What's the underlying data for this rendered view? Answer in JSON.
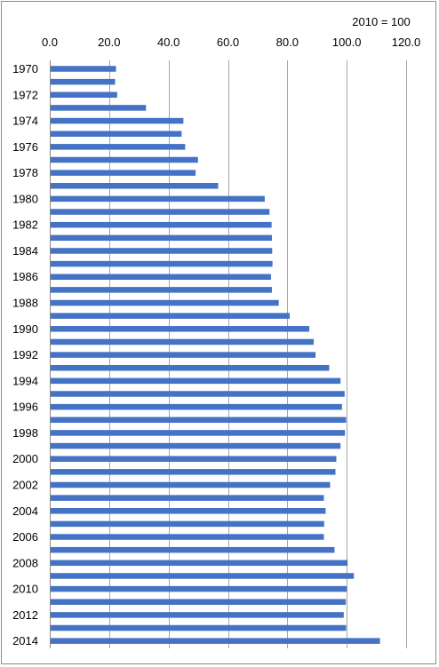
{
  "chart_data": {
    "type": "bar",
    "orientation": "horizontal",
    "unit_label": "2010 = 100",
    "xlim": [
      0,
      120
    ],
    "x_ticks": [
      "0.0",
      "20.0",
      "40.0",
      "60.0",
      "80.0",
      "100.0",
      "120.0"
    ],
    "x_tick_values": [
      0,
      20,
      40,
      60,
      80,
      100,
      120
    ],
    "grid": true,
    "axis_position": "top",
    "bar_color": "#4472c4",
    "categories": [
      "1970",
      "1971",
      "1972",
      "1973",
      "1974",
      "1975",
      "1976",
      "1977",
      "1978",
      "1979",
      "1980",
      "1981",
      "1982",
      "1983",
      "1984",
      "1985",
      "1986",
      "1987",
      "1988",
      "1989",
      "1990",
      "1991",
      "1992",
      "1993",
      "1994",
      "1995",
      "1996",
      "1997",
      "1998",
      "1999",
      "2000",
      "2001",
      "2002",
      "2003",
      "2004",
      "2005",
      "2006",
      "2007",
      "2008",
      "2009",
      "2010",
      "2011",
      "2012",
      "2013",
      "2014"
    ],
    "category_labels": [
      "1970",
      "",
      "1972",
      "",
      "1974",
      "",
      "1976",
      "",
      "1978",
      "",
      "1980",
      "",
      "1982",
      "",
      "1984",
      "",
      "1986",
      "",
      "1988",
      "",
      "1990",
      "",
      "1992",
      "",
      "1994",
      "",
      "1996",
      "",
      "1998",
      "",
      "2000",
      "",
      "2002",
      "",
      "2004",
      "",
      "2006",
      "",
      "2008",
      "",
      "2010",
      "",
      "2012",
      "",
      "2014"
    ],
    "values": [
      22.3,
      22.0,
      22.7,
      32.4,
      45.0,
      44.4,
      45.6,
      49.9,
      49.1,
      56.7,
      72.4,
      74.0,
      74.7,
      74.8,
      74.9,
      75.0,
      74.5,
      74.8,
      77.1,
      80.8,
      87.4,
      88.9,
      89.5,
      94.1,
      97.9,
      99.3,
      98.4,
      99.8,
      99.4,
      97.9,
      96.5,
      96.2,
      94.4,
      92.3,
      92.9,
      92.4,
      92.3,
      95.9,
      100.3,
      102.4,
      100.0,
      99.7,
      99.0,
      99.8,
      111.2
    ]
  }
}
